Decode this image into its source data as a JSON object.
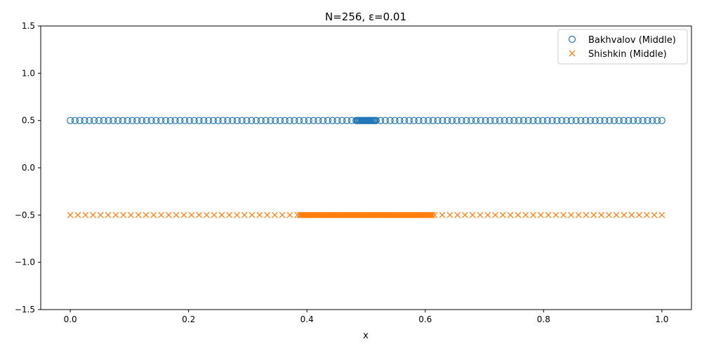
{
  "chart_data": {
    "type": "scatter",
    "title": "N=256, ε=0.01",
    "xlabel": "x",
    "ylabel": "",
    "xlim": [
      -0.05,
      1.05
    ],
    "ylim": [
      -1.5,
      1.5
    ],
    "xticks": [
      "0.0",
      "0.2",
      "0.4",
      "0.6",
      "0.8",
      "1.0"
    ],
    "yticks": [
      "−1.5",
      "−1.0",
      "−0.5",
      "0.0",
      "0.5",
      "1.0",
      "1.5"
    ],
    "legend_position": "top-right",
    "grid": false,
    "series": [
      {
        "name": "Bakhvalov (Middle)",
        "marker": "circle-open",
        "color": "#1f77b4",
        "y": 0.5,
        "x_sparse_step": 0.00806,
        "x_sparse_ranges": [
          [
            0.0,
            0.483
          ],
          [
            0.517,
            1.0
          ]
        ],
        "x_dense_range": [
          0.483,
          0.517
        ],
        "x_dense_count": 20
      },
      {
        "name": "Shishkin (Middle)",
        "marker": "x",
        "color": "#ff7f0e",
        "y": -0.5,
        "x_sparse_step": 0.0128,
        "x_sparse_ranges": [
          [
            0.0,
            0.388
          ],
          [
            0.612,
            1.0
          ]
        ],
        "x_dense_range": [
          0.388,
          0.612
        ],
        "x_dense_count": 128
      }
    ]
  }
}
